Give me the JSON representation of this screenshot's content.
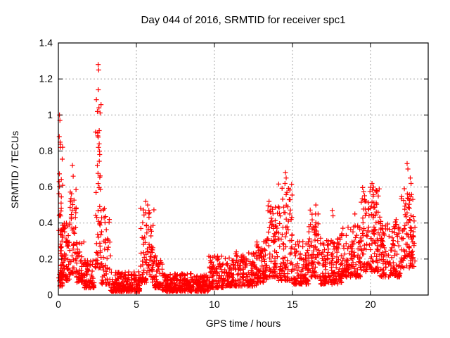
{
  "window": {
    "background": "#ffffff"
  },
  "chart_data": {
    "type": "scatter",
    "title": "Day 044 of 2016, SRMTID for receiver spc1",
    "xlabel": "GPS time / hours",
    "ylabel": "SRMTID / TECUs",
    "xlim": [
      0,
      23.7
    ],
    "ylim": [
      0,
      1.4
    ],
    "xticks": [
      0,
      5,
      10,
      15,
      20
    ],
    "yticks": [
      0,
      0.2,
      0.4,
      0.6,
      0.8,
      1,
      1.2,
      1.4
    ],
    "grid": true,
    "grid_style": "dotted",
    "legend": "none",
    "marker": {
      "shape": "plus",
      "color": "#ff0000",
      "size": 7,
      "stroke_width": 1.2
    },
    "colors": {
      "axis": "#000000",
      "grid": "#a8a8a8",
      "text": "#000000",
      "background": "#ffffff"
    },
    "series_name": "SRMTID",
    "point_count_estimate": 2450,
    "random_seed": 44,
    "segment_format": "[hour_start, hour_end, value_min, value_max, n_points, low_skew_power] — envelope of the dense scatter read off the plot",
    "segments": [
      [
        0.02,
        0.28,
        0.05,
        0.85,
        45,
        2.0
      ],
      [
        0.1,
        0.45,
        0.1,
        0.5,
        50,
        1.8
      ],
      [
        0.45,
        0.75,
        0.08,
        0.4,
        40,
        2.0
      ],
      [
        0.75,
        1.15,
        0.12,
        0.6,
        45,
        1.8
      ],
      [
        1.15,
        1.65,
        0.07,
        0.3,
        50,
        2.0
      ],
      [
        1.65,
        2.3,
        0.04,
        0.2,
        70,
        2.0
      ],
      [
        2.35,
        2.75,
        0.15,
        1.1,
        55,
        1.7
      ],
      [
        2.75,
        3.35,
        0.06,
        0.5,
        55,
        2.2
      ],
      [
        3.35,
        5.25,
        0.02,
        0.13,
        200,
        1.8
      ],
      [
        5.25,
        6.15,
        0.07,
        0.5,
        95,
        1.9
      ],
      [
        6.15,
        6.65,
        0.04,
        0.22,
        50,
        2.0
      ],
      [
        6.65,
        9.6,
        0.02,
        0.12,
        300,
        1.6
      ],
      [
        9.6,
        10.7,
        0.04,
        0.22,
        110,
        1.8
      ],
      [
        10.7,
        12.7,
        0.05,
        0.24,
        200,
        1.8
      ],
      [
        12.7,
        13.35,
        0.07,
        0.3,
        70,
        1.8
      ],
      [
        13.35,
        14.05,
        0.1,
        0.5,
        75,
        1.8
      ],
      [
        14.05,
        15.0,
        0.08,
        0.62,
        95,
        1.9
      ],
      [
        15.0,
        16.05,
        0.06,
        0.3,
        105,
        1.8
      ],
      [
        16.05,
        16.7,
        0.1,
        0.48,
        70,
        1.8
      ],
      [
        16.7,
        18.15,
        0.06,
        0.32,
        145,
        1.8
      ],
      [
        18.15,
        19.4,
        0.1,
        0.4,
        130,
        1.7
      ],
      [
        19.4,
        20.6,
        0.13,
        0.6,
        130,
        1.6
      ],
      [
        20.6,
        21.9,
        0.1,
        0.42,
        130,
        1.7
      ],
      [
        21.9,
        22.85,
        0.15,
        0.6,
        100,
        1.5
      ]
    ],
    "peak_points": [
      [
        0.07,
        1.0
      ],
      [
        0.1,
        0.97
      ],
      [
        0.06,
        0.88
      ],
      [
        0.12,
        0.82
      ],
      [
        0.05,
        0.63
      ],
      [
        0.9,
        0.72
      ],
      [
        0.95,
        0.66
      ],
      [
        2.55,
        1.28
      ],
      [
        2.58,
        1.25
      ],
      [
        2.56,
        1.14
      ],
      [
        2.6,
        1.04
      ],
      [
        2.52,
        0.9
      ],
      [
        2.62,
        0.84
      ],
      [
        2.57,
        0.82
      ],
      [
        2.65,
        0.78
      ],
      [
        2.5,
        0.72
      ],
      [
        5.6,
        0.52
      ],
      [
        5.72,
        0.5
      ],
      [
        5.8,
        0.47
      ],
      [
        13.5,
        0.52
      ],
      [
        13.62,
        0.49
      ],
      [
        14.55,
        0.68
      ],
      [
        14.6,
        0.65
      ],
      [
        14.52,
        0.62
      ],
      [
        14.65,
        0.57
      ],
      [
        16.5,
        0.5
      ],
      [
        17.55,
        0.47
      ],
      [
        17.6,
        0.44
      ],
      [
        19.0,
        0.45
      ],
      [
        20.1,
        0.62
      ],
      [
        20.2,
        0.6
      ],
      [
        20.35,
        0.58
      ],
      [
        20.5,
        0.55
      ],
      [
        22.35,
        0.73
      ],
      [
        22.4,
        0.7
      ],
      [
        22.55,
        0.65
      ],
      [
        22.6,
        0.62
      ]
    ]
  }
}
